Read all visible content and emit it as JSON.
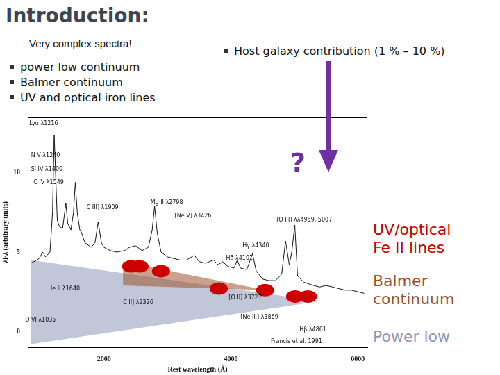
{
  "slide": {
    "title": "Introduction:",
    "subtitle": "Very complex spectra!",
    "bullets": [
      "power low continuum",
      "Balmer continuum",
      "UV and optical iron lines"
    ],
    "host_note": "Host galaxy contribution (1 % – 10 %)",
    "question_mark": "?"
  },
  "chart_data": {
    "type": "line",
    "x_label": "Rest wavelength (Å)",
    "y_label": "λFλ (arbitrary units)",
    "xlim": [
      800,
      6150
    ],
    "xticks": [
      2000,
      4000,
      6000
    ],
    "ylim": [
      -1,
      13.5
    ],
    "yticks": [
      0,
      5,
      10
    ],
    "grid": false,
    "color": "#111111",
    "x": [
      850,
      900,
      980,
      1035,
      1080,
      1150,
      1190,
      1216,
      1240,
      1265,
      1300,
      1350,
      1400,
      1430,
      1480,
      1520,
      1549,
      1580,
      1620,
      1640,
      1700,
      1800,
      1860,
      1909,
      1960,
      2000,
      2100,
      2200,
      2326,
      2400,
      2500,
      2600,
      2700,
      2760,
      2798,
      2840,
      2900,
      3000,
      3100,
      3200,
      3300,
      3426,
      3500,
      3600,
      3727,
      3800,
      3869,
      3950,
      4050,
      4101,
      4150,
      4250,
      4340,
      4400,
      4500,
      4600,
      4700,
      4800,
      4861,
      4920,
      4959,
      5007,
      5050,
      5150,
      5300,
      5400,
      5500,
      5600,
      5700,
      5800,
      5900,
      6000,
      6100
    ],
    "values": [
      4.3,
      4.4,
      4.6,
      5.0,
      4.7,
      5.0,
      7.5,
      12.4,
      9.8,
      7.0,
      6.6,
      6.5,
      8.1,
      6.8,
      6.4,
      7.5,
      9.4,
      7.5,
      6.4,
      6.3,
      5.6,
      5.3,
      5.6,
      6.9,
      5.6,
      5.3,
      5.1,
      5.0,
      5.1,
      5.3,
      5.4,
      5.1,
      5.3,
      6.4,
      7.9,
      6.2,
      5.0,
      4.7,
      4.6,
      4.5,
      4.5,
      4.8,
      4.4,
      4.3,
      4.5,
      4.2,
      4.4,
      4.1,
      4.0,
      4.5,
      4.0,
      3.9,
      4.9,
      3.8,
      3.3,
      3.2,
      3.2,
      3.6,
      5.7,
      4.2,
      5.0,
      6.7,
      3.5,
      3.1,
      2.9,
      2.8,
      2.9,
      2.8,
      2.7,
      2.6,
      2.6,
      2.5,
      2.4
    ],
    "line_labels": [
      {
        "text": "Lyα λ1216",
        "x": 1050,
        "y": 13.1
      },
      {
        "text": "N V λ1240",
        "x": 1080,
        "y": 11.1
      },
      {
        "text": "Si IV λ1400",
        "x": 1100,
        "y": 10.2
      },
      {
        "text": "C IV λ1549",
        "x": 1130,
        "y": 9.4
      },
      {
        "text": "C III] λ1909",
        "x": 1978,
        "y": 7.8
      },
      {
        "text": "Mg II λ2798",
        "x": 2989,
        "y": 8.1
      },
      {
        "text": "[Ne V] λ3426",
        "x": 3404,
        "y": 7.3
      },
      {
        "text": "[O III] λλ4959, 5007",
        "x": 5157,
        "y": 7.0
      },
      {
        "text": "Hγ λ4340",
        "x": 4393,
        "y": 5.4
      },
      {
        "text": "Hδ λ4101",
        "x": 4135,
        "y": 4.6
      },
      {
        "text": "He II λ1640",
        "x": 1371,
        "y": 2.7
      },
      {
        "text": "C II] λ2326",
        "x": 2539,
        "y": 1.8
      },
      {
        "text": "[O II] λ3727",
        "x": 4225,
        "y": 2.1
      },
      {
        "text": "O VI λ1035",
        "x": 1000,
        "y": 0.7
      },
      {
        "text": "[Ne III] λ3869",
        "x": 4449,
        "y": 0.9
      },
      {
        "text": "Hβ λ4861",
        "x": 5292,
        "y": 0.1
      }
    ],
    "credit": {
      "text": "Francis et al. 1991",
      "x": 5034,
      "y": -0.65
    },
    "components": [
      {
        "label": "UV/optical Fe II lines",
        "color": "#cc0000",
        "marker": "ellipse",
        "x": [
          2427,
          2562,
          2899,
          3809,
          4539,
          5011,
          5213
        ],
        "y": [
          4.1,
          4.1,
          3.8,
          2.7,
          2.6,
          2.2,
          2.2
        ]
      },
      {
        "label": "Balmer continuum",
        "color": "#a0522d",
        "polygon": {
          "x": [
            2300,
            2300,
            4550
          ],
          "y": [
            4.4,
            2.9,
            2.6
          ]
        }
      },
      {
        "label": "Power low",
        "color": "#8e97b8",
        "polygon": {
          "x": [
            850,
            850,
            5400
          ],
          "y": [
            4.5,
            -0.8,
            1.9
          ]
        }
      }
    ]
  }
}
